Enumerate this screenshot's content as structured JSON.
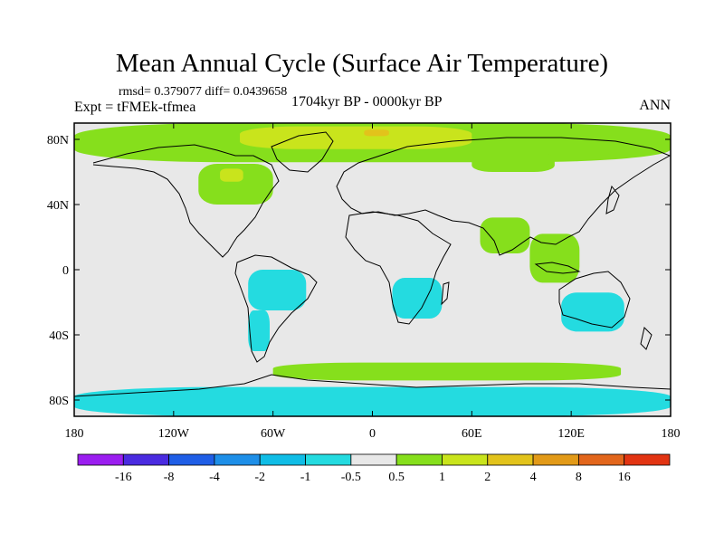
{
  "title": "Mean Annual Cycle (Surface Air Temperature)",
  "stats": "rmsd= 0.379077 diff= 0.0439658",
  "experiment": "Expt = tFMEk-tfmea",
  "period": "1704kyr BP - 0000kyr BP",
  "season": "ANN",
  "colors": {
    "background": "#e8e8e8",
    "coast": "#000000"
  },
  "axes": {
    "lat_ticks": [
      {
        "label": "80N",
        "value": 80
      },
      {
        "label": "40N",
        "value": 40
      },
      {
        "label": "0",
        "value": 0
      },
      {
        "label": "40S",
        "value": -40
      },
      {
        "label": "80S",
        "value": -80
      }
    ],
    "lon_ticks": [
      {
        "label": "180",
        "value": -180
      },
      {
        "label": "120W",
        "value": -120
      },
      {
        "label": "60W",
        "value": -60
      },
      {
        "label": "0",
        "value": 0
      },
      {
        "label": "60E",
        "value": 60
      },
      {
        "label": "120E",
        "value": 120
      },
      {
        "label": "180",
        "value": 180
      }
    ]
  },
  "colorbar": {
    "colors": [
      "#9b1ef0",
      "#4a2be0",
      "#1f5ee6",
      "#1e8fe8",
      "#10bde6",
      "#24dbe0",
      "#e8e8e8",
      "#86df1c",
      "#c9e41c",
      "#e2c31b",
      "#e29a18",
      "#e2661c",
      "#e23412"
    ],
    "labels": [
      "-16",
      "-8",
      "-4",
      "-2",
      "-1",
      "-0.5",
      "0.5",
      "1",
      "2",
      "4",
      "8",
      "16"
    ]
  },
  "regions": [
    {
      "name": "arctic-band",
      "color": "#86df1c",
      "lon": [
        -180,
        180
      ],
      "lat": [
        66,
        90
      ]
    },
    {
      "name": "arctic-core",
      "color": "#c9e41c",
      "lon": [
        -80,
        60
      ],
      "lat": [
        74,
        88
      ]
    },
    {
      "name": "arctic-hotspot",
      "color": "#e2c31b",
      "lon": [
        -5,
        10
      ],
      "lat": [
        82,
        86
      ]
    },
    {
      "name": "north-america",
      "color": "#86df1c",
      "lon": [
        -105,
        -60
      ],
      "lat": [
        40,
        65
      ]
    },
    {
      "name": "hudson-bay",
      "color": "#c9e41c",
      "lon": [
        -92,
        -78
      ],
      "lat": [
        54,
        62
      ]
    },
    {
      "name": "siberia",
      "color": "#86df1c",
      "lon": [
        60,
        110
      ],
      "lat": [
        60,
        72
      ]
    },
    {
      "name": "south-asia",
      "color": "#86df1c",
      "lon": [
        65,
        95
      ],
      "lat": [
        10,
        32
      ]
    },
    {
      "name": "indochina",
      "color": "#86df1c",
      "lon": [
        95,
        125
      ],
      "lat": [
        -8,
        22
      ]
    },
    {
      "name": "amazon",
      "color": "#24dbe0",
      "lon": [
        -75,
        -40
      ],
      "lat": [
        -25,
        0
      ]
    },
    {
      "name": "south-america-tip",
      "color": "#24dbe0",
      "lon": [
        -75,
        -62
      ],
      "lat": [
        -50,
        -25
      ]
    },
    {
      "name": "africa-south",
      "color": "#24dbe0",
      "lon": [
        12,
        42
      ],
      "lat": [
        -30,
        -5
      ]
    },
    {
      "name": "australia",
      "color": "#24dbe0",
      "lon": [
        114,
        152
      ],
      "lat": [
        -38,
        -14
      ]
    },
    {
      "name": "southern-ocean-warm",
      "color": "#86df1c",
      "lon": [
        -60,
        150
      ],
      "lat": [
        -68,
        -57
      ]
    },
    {
      "name": "antarctica",
      "color": "#24dbe0",
      "lon": [
        -180,
        180
      ],
      "lat": [
        -90,
        -72
      ]
    }
  ]
}
